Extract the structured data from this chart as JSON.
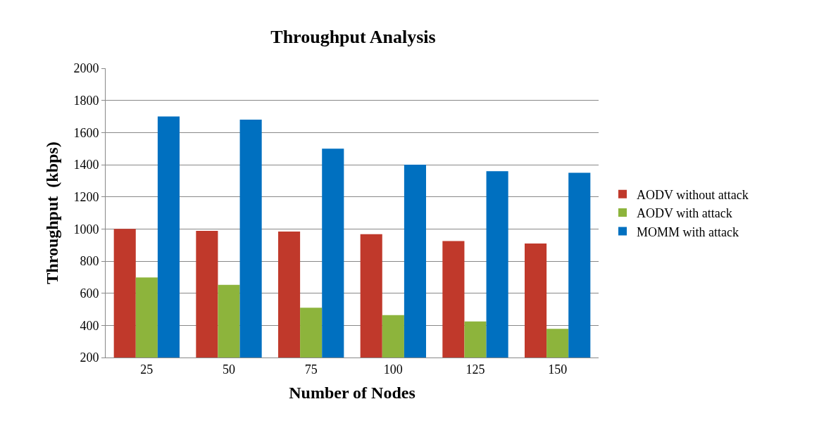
{
  "chart_data": {
    "type": "bar",
    "title": "Throughput Analysis",
    "xlabel": "Number of Nodes",
    "ylabel": "Throughput  (kbps)",
    "categories": [
      "25",
      "50",
      "75",
      "100",
      "125",
      "150"
    ],
    "series": [
      {
        "name": "AODV without attack",
        "color": "#c0392b",
        "values": [
          1000,
          988,
          984,
          968,
          925,
          909
        ]
      },
      {
        "name": "AODV with attack",
        "color": "#8db43c",
        "values": [
          698,
          652,
          510,
          464,
          425,
          379
        ]
      },
      {
        "name": "MOMM with attack",
        "color": "#0070c0",
        "values": [
          1700,
          1680,
          1500,
          1400,
          1360,
          1350
        ]
      }
    ],
    "ylim": [
      200,
      2000
    ],
    "yticks": [
      200,
      400,
      600,
      800,
      1000,
      1200,
      1400,
      1600,
      1800,
      2000
    ],
    "grid": "y",
    "legend": "right"
  }
}
